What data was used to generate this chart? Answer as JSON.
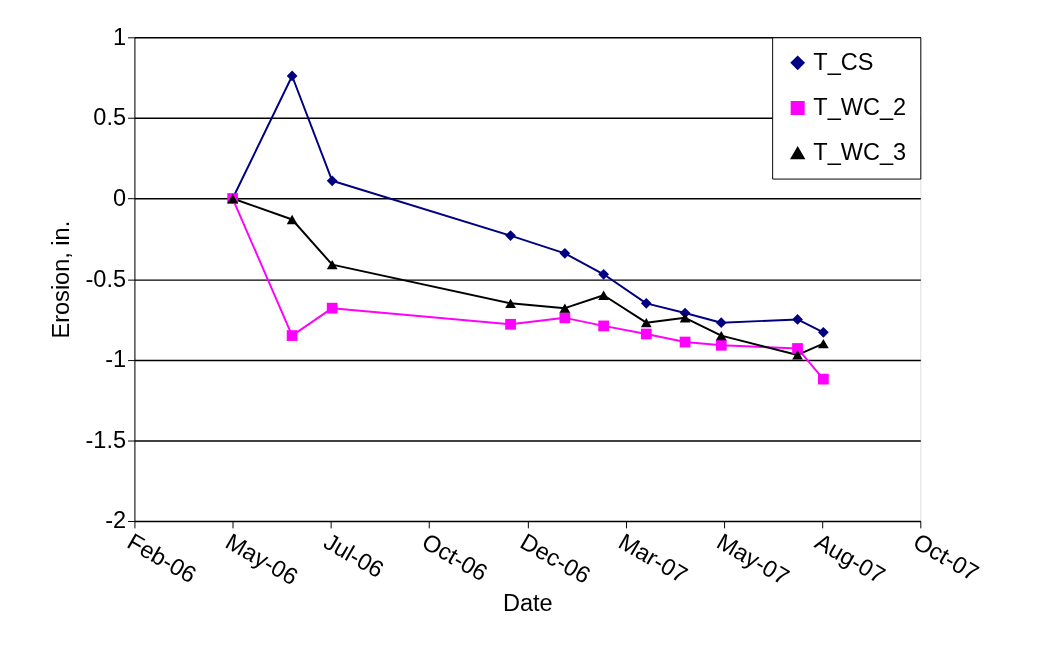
{
  "chart_data": {
    "type": "line",
    "xlabel": "Date",
    "ylabel": "Erosion, in.",
    "x": [
      "2006-05-07",
      "2006-06-22",
      "2006-07-23",
      "2006-12-08",
      "2007-01-19",
      "2007-02-18",
      "2007-03-23",
      "2007-04-22",
      "2007-05-20",
      "2007-07-18",
      "2007-08-07"
    ],
    "series": [
      {
        "name": "T_CS",
        "color": "#000080",
        "marker": "diamond",
        "values": [
          0,
          0.76,
          0.11,
          -0.23,
          -0.34,
          -0.47,
          -0.65,
          -0.71,
          -0.77,
          -0.75,
          -0.83
        ]
      },
      {
        "name": "T_WC_2",
        "color": "#ff00ff",
        "marker": "square",
        "values": [
          0,
          -0.85,
          -0.68,
          -0.78,
          -0.74,
          -0.79,
          -0.84,
          -0.89,
          -0.91,
          -0.93,
          -1.12
        ]
      },
      {
        "name": "T_WC_3",
        "color": "#000000",
        "marker": "triangle",
        "values": [
          0,
          -0.13,
          -0.41,
          -0.65,
          -0.68,
          -0.6,
          -0.77,
          -0.74,
          -0.85,
          -0.97,
          -0.9
        ]
      }
    ],
    "xlim": [
      "2006-02-20",
      "2007-10-21"
    ],
    "xticks": [
      {
        "value": "2006-02-20",
        "label": "Feb-06"
      },
      {
        "value": "2006-05-07",
        "label": "May-06"
      },
      {
        "value": "2006-07-22",
        "label": "Jul-06"
      },
      {
        "value": "2006-10-06",
        "label": "Oct-06"
      },
      {
        "value": "2006-12-21",
        "label": "Dec-06"
      },
      {
        "value": "2007-03-07",
        "label": "Mar-07"
      },
      {
        "value": "2007-05-22",
        "label": "May-07"
      },
      {
        "value": "2007-08-06",
        "label": "Aug-07"
      },
      {
        "value": "2007-10-21",
        "label": "Oct-07"
      }
    ],
    "ylim": [
      -2,
      1
    ],
    "yticks": [
      -2,
      -1.5,
      -1,
      -0.5,
      0,
      0.5,
      1
    ],
    "grid": "y",
    "legend": "top right",
    "line_style": "solid"
  }
}
